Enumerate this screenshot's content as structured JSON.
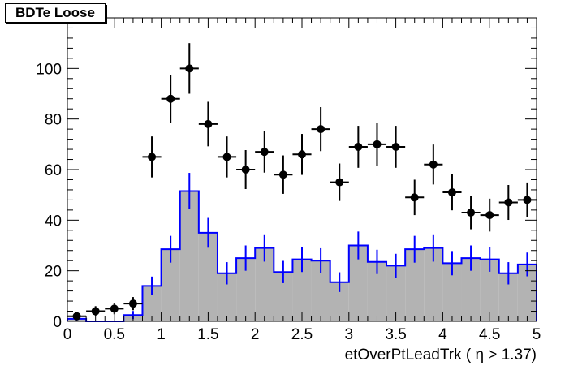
{
  "chart_data": {
    "type": "bar",
    "title": "BDTe Loose",
    "xlabel": "etOverPtLeadTrk ( η > 1.37)",
    "ylabel": "",
    "xlim": [
      0,
      5
    ],
    "ylim": [
      0,
      120
    ],
    "x_ticks": [
      "0",
      "0.5",
      "1",
      "1.5",
      "2",
      "2.5",
      "3",
      "3.5",
      "4",
      "4.5",
      "5"
    ],
    "y_ticks": [
      "0",
      "20",
      "40",
      "60",
      "80",
      "100",
      "120"
    ],
    "bin_edges": [
      0,
      0.2,
      0.4,
      0.6,
      0.8,
      1.0,
      1.2,
      1.4,
      1.6,
      1.8,
      2.0,
      2.2,
      2.4,
      2.6,
      2.8,
      3.0,
      3.2,
      3.4,
      3.6,
      3.8,
      4.0,
      4.2,
      4.4,
      4.6,
      4.8,
      5.0
    ],
    "grid": false,
    "series": [
      {
        "kind": "histogram",
        "fill_color": "#b3b3b3",
        "line_color": "#0000ff",
        "values": [
          1,
          0,
          0,
          2.5,
          14,
          28.5,
          51.5,
          35,
          19,
          25,
          29,
          19.5,
          24.5,
          24,
          15.5,
          30,
          23.5,
          22,
          28.5,
          29,
          23,
          25,
          24.5,
          19,
          22.5
        ],
        "errors": [
          1,
          0,
          0,
          1.6,
          3.7,
          5.3,
          7.2,
          5.9,
          4.4,
          5,
          5.4,
          4.4,
          5,
          4.9,
          3.9,
          5.5,
          4.8,
          4.7,
          5.3,
          5.4,
          4.8,
          5,
          4.9,
          4.4,
          4.7
        ]
      },
      {
        "kind": "points",
        "color": "#000000",
        "values": [
          2,
          4,
          5,
          7,
          65,
          88,
          100,
          78,
          65,
          60,
          67,
          58,
          66,
          76,
          55,
          69,
          70,
          69,
          49,
          62,
          51,
          43,
          42,
          47,
          48
        ],
        "errors": [
          1.4,
          2,
          2.2,
          2.6,
          8.1,
          9.4,
          10,
          8.8,
          8.1,
          7.7,
          8.2,
          7.6,
          8.1,
          8.7,
          7.4,
          8.3,
          8.4,
          8.3,
          7,
          7.9,
          7.1,
          6.6,
          6.5,
          6.9,
          6.9
        ]
      }
    ]
  }
}
